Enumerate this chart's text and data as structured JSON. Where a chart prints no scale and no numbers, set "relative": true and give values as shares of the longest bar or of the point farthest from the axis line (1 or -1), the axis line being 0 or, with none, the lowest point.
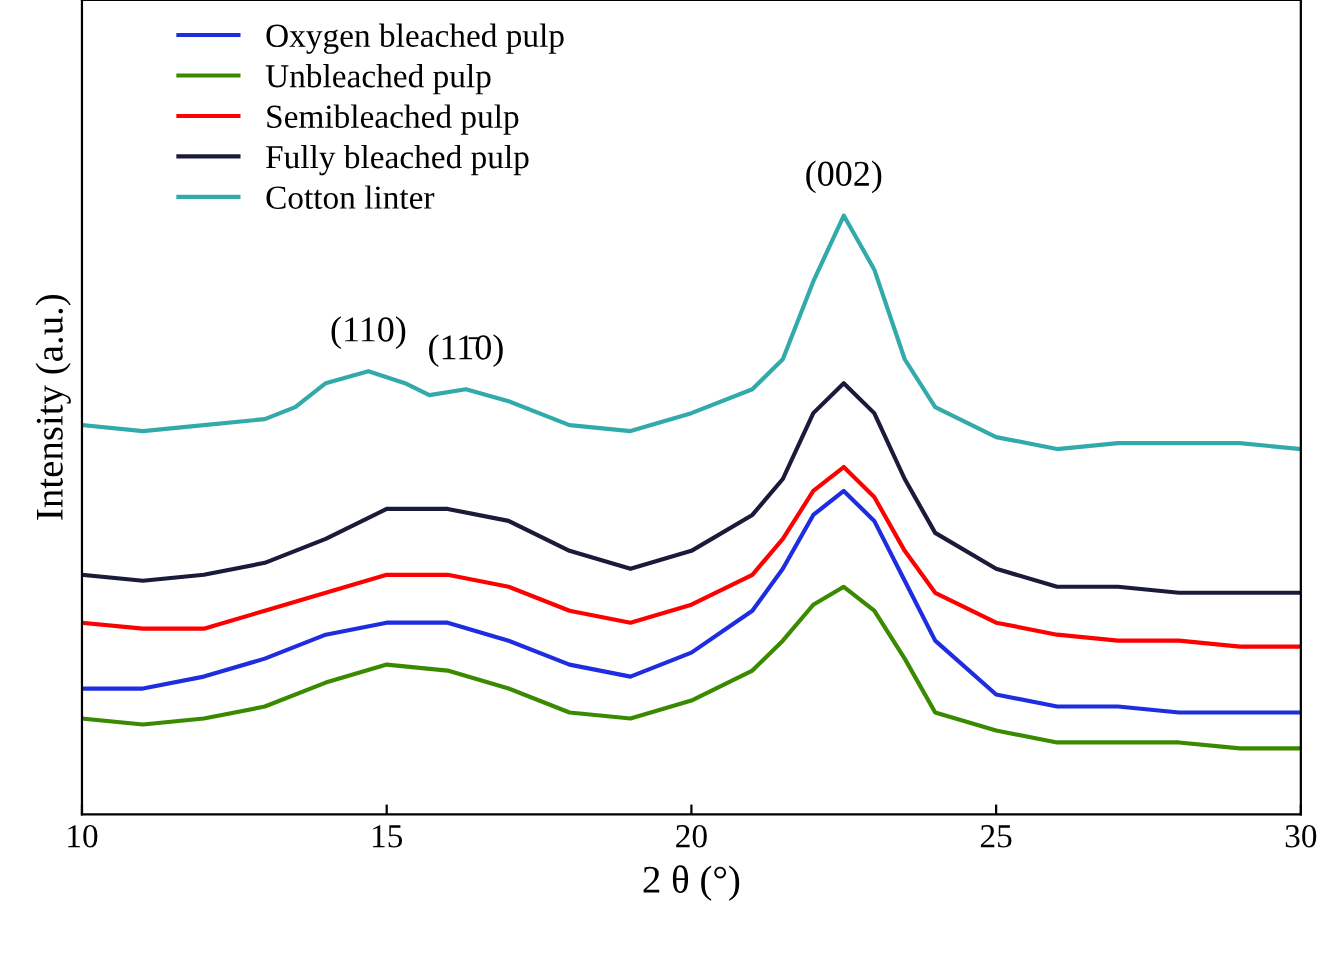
{
  "chart_data": {
    "type": "line",
    "relative": true,
    "xlabel": "2 θ (°)",
    "ylabel": "Intensity (a.u.)",
    "xlim": [
      10,
      30
    ],
    "xticks": [
      10,
      15,
      20,
      25,
      30
    ],
    "grid": false,
    "legend": "top left",
    "tick_labels": "x",
    "annotations": [
      {
        "text": "(110)",
        "x": 14.7,
        "y": 0.74
      },
      {
        "text": "(11̄0)",
        "x": 16.3,
        "y": 0.71
      },
      {
        "text": "(002)",
        "x": 22.5,
        "y": 1
      }
    ],
    "series": [
      {
        "name": "Oxygen bleached pulp",
        "color": "#1f2de0",
        "x": [
          10,
          11,
          12,
          13,
          14,
          15,
          16,
          17,
          18,
          19,
          20,
          21,
          21.5,
          22,
          22.5,
          23,
          23.5,
          24,
          25,
          26,
          27,
          28,
          29,
          30
        ],
        "values": [
          0.21,
          0.21,
          0.23,
          0.26,
          0.3,
          0.32,
          0.32,
          0.29,
          0.25,
          0.23,
          0.27,
          0.34,
          0.41,
          0.5,
          0.54,
          0.49,
          0.39,
          0.29,
          0.2,
          0.18,
          0.18,
          0.17,
          0.17,
          0.17
        ]
      },
      {
        "name": "Unbleached pulp",
        "color": "#3a8a00",
        "x": [
          10,
          11,
          12,
          13,
          14,
          15,
          16,
          17,
          18,
          19,
          20,
          21,
          21.5,
          22,
          22.5,
          23,
          23.5,
          24,
          25,
          26,
          27,
          28,
          29,
          30
        ],
        "values": [
          0.16,
          0.15,
          0.16,
          0.18,
          0.22,
          0.25,
          0.24,
          0.21,
          0.17,
          0.16,
          0.19,
          0.24,
          0.29,
          0.35,
          0.38,
          0.34,
          0.26,
          0.17,
          0.14,
          0.12,
          0.12,
          0.12,
          0.11,
          0.11
        ]
      },
      {
        "name": "Semibleached pulp",
        "color": "#ff0000",
        "x": [
          10,
          11,
          12,
          13,
          14,
          15,
          16,
          17,
          18,
          19,
          20,
          21,
          21.5,
          22,
          22.5,
          23,
          23.5,
          24,
          25,
          26,
          27,
          28,
          29,
          30
        ],
        "values": [
          0.32,
          0.31,
          0.31,
          0.34,
          0.37,
          0.4,
          0.4,
          0.38,
          0.34,
          0.32,
          0.35,
          0.4,
          0.46,
          0.54,
          0.58,
          0.53,
          0.44,
          0.37,
          0.32,
          0.3,
          0.29,
          0.29,
          0.28,
          0.28
        ]
      },
      {
        "name": "Fully bleached pulp",
        "color": "#1a1a3a",
        "x": [
          10,
          11,
          12,
          13,
          14,
          15,
          16,
          17,
          18,
          19,
          20,
          21,
          21.5,
          22,
          22.5,
          23,
          23.5,
          24,
          25,
          26,
          27,
          28,
          29,
          30
        ],
        "values": [
          0.4,
          0.39,
          0.4,
          0.42,
          0.46,
          0.51,
          0.51,
          0.49,
          0.44,
          0.41,
          0.44,
          0.5,
          0.56,
          0.67,
          0.72,
          0.67,
          0.56,
          0.47,
          0.41,
          0.38,
          0.38,
          0.37,
          0.37,
          0.37
        ]
      },
      {
        "name": "Cotton linter",
        "color": "#33aaaa",
        "x": [
          10,
          11,
          12,
          13,
          13.5,
          14,
          14.7,
          15.3,
          15.7,
          16.3,
          17,
          18,
          19,
          20,
          21,
          21.5,
          22,
          22.5,
          23,
          23.5,
          24,
          25,
          26,
          27,
          28,
          29,
          30
        ],
        "values": [
          0.65,
          0.64,
          0.65,
          0.66,
          0.68,
          0.72,
          0.74,
          0.72,
          0.7,
          0.71,
          0.69,
          0.65,
          0.64,
          0.67,
          0.71,
          0.76,
          0.89,
          1,
          0.91,
          0.76,
          0.68,
          0.63,
          0.61,
          0.62,
          0.62,
          0.62,
          0.61
        ]
      }
    ]
  }
}
